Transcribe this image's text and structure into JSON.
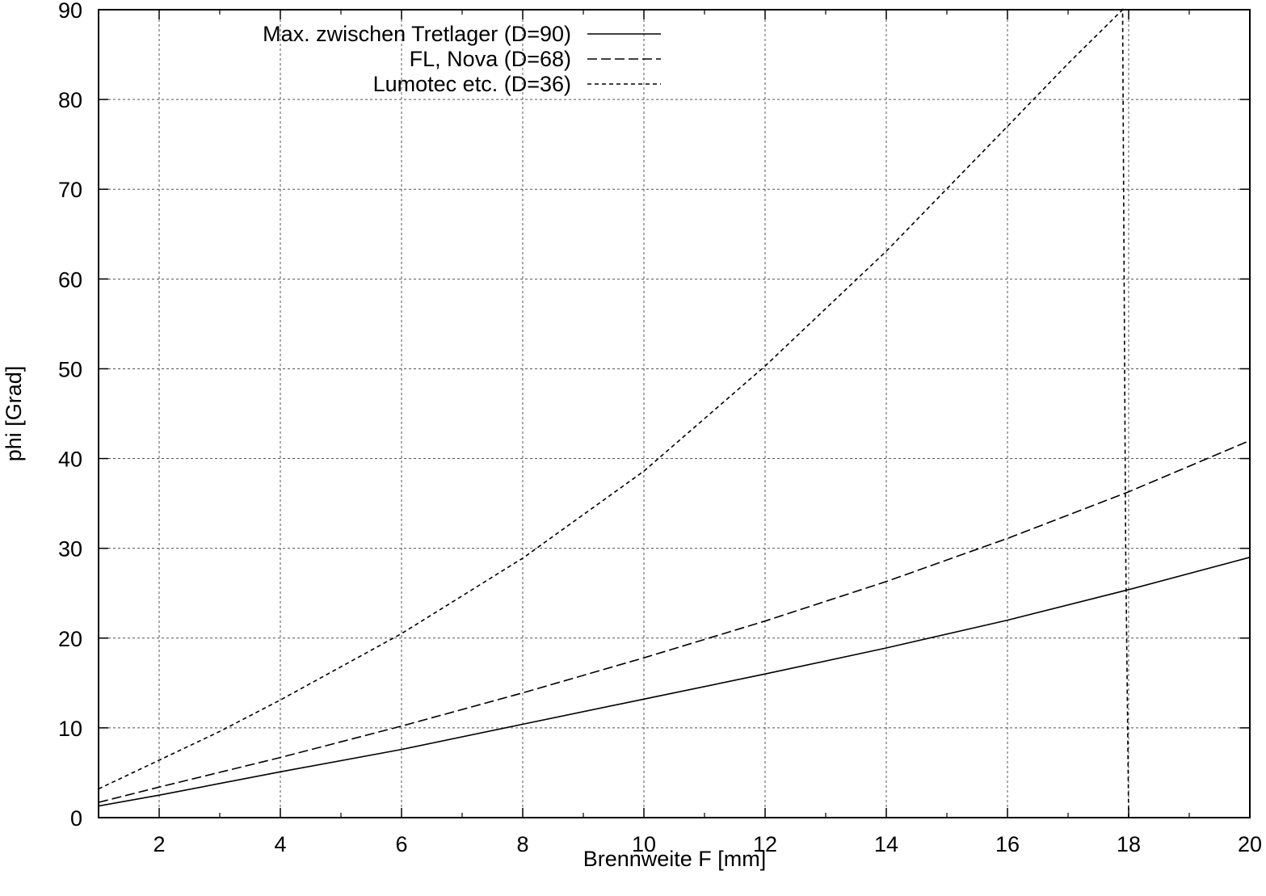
{
  "chart_data": {
    "type": "line",
    "xlabel": "Brennweite F [mm]",
    "ylabel": "phi [Grad]",
    "xlim": [
      1,
      20
    ],
    "ylim": [
      0,
      90
    ],
    "xticks": [
      2,
      4,
      6,
      8,
      10,
      12,
      14,
      16,
      18,
      20
    ],
    "yticks": [
      0,
      10,
      20,
      30,
      40,
      50,
      60,
      70,
      80,
      90
    ],
    "grid": true,
    "legend_position": "top-left",
    "series": [
      {
        "name": "Max. zwischen Tretlager (D=90)",
        "style": "solid",
        "x": [
          1,
          2,
          4,
          6,
          8,
          10,
          12,
          14,
          16,
          18,
          20
        ],
        "y": [
          1.3,
          2.5,
          5.1,
          7.6,
          10.4,
          13.2,
          16.0,
          18.9,
          22.0,
          25.4,
          29.0
        ]
      },
      {
        "name": "FL, Nova (D=68)",
        "style": "dashed",
        "x": [
          1,
          2,
          4,
          6,
          8,
          10,
          12,
          14,
          16,
          18,
          20
        ],
        "y": [
          1.7,
          3.4,
          6.7,
          10.2,
          13.9,
          17.8,
          21.9,
          26.3,
          31.1,
          36.3,
          42.0
        ]
      },
      {
        "name": "Lumotec etc. (D=36)",
        "style": "dotted",
        "x": [
          1,
          2,
          3,
          4,
          6,
          8,
          10,
          12,
          14,
          16,
          17,
          17.9,
          17.95,
          18
        ],
        "y": [
          3.2,
          6.4,
          9.6,
          13.1,
          20.5,
          28.9,
          38.6,
          50.3,
          63.1,
          77.0,
          84.0,
          90.0,
          30.0,
          0.0
        ]
      }
    ]
  }
}
